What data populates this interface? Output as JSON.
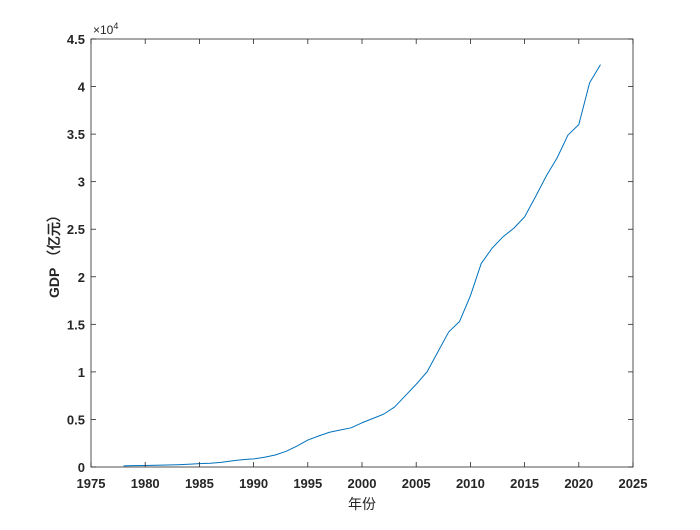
{
  "chart_data": {
    "type": "line",
    "title": "",
    "xlabel": "年份",
    "ylabel": "GDP （亿元）",
    "y_exponent_label": "×10^4",
    "exponent_base": "×10",
    "exponent_power": "4",
    "xlim": [
      1975,
      2025
    ],
    "ylim": [
      0,
      4.5
    ],
    "xticks": [
      "1975",
      "1980",
      "1985",
      "1990",
      "1995",
      "2000",
      "2005",
      "2010",
      "2015",
      "2020",
      "2025"
    ],
    "yticks": [
      "0",
      "0.5",
      "1",
      "1.5",
      "2",
      "2.5",
      "3",
      "3.5",
      "4",
      "4.5"
    ],
    "grid": false,
    "legend": "none",
    "line_color": "#0072BD",
    "series": [
      {
        "x": [
          1978,
          1979,
          1980,
          1981,
          1982,
          1983,
          1984,
          1985,
          1986,
          1987,
          1988,
          1989,
          1990,
          1991,
          1992,
          1993,
          1994,
          1995,
          1996,
          1997,
          1998,
          1999,
          2000,
          2001,
          2002,
          2003,
          2004,
          2005,
          2006,
          2007,
          2008,
          2009,
          2010,
          2011,
          2012,
          2013,
          2014,
          2015,
          2016,
          2017,
          2018,
          2019,
          2020,
          2021,
          2022
        ],
        "y": [
          0.012,
          0.014,
          0.016,
          0.018,
          0.021,
          0.024,
          0.029,
          0.035,
          0.04,
          0.048,
          0.065,
          0.078,
          0.085,
          0.102,
          0.126,
          0.165,
          0.22,
          0.283,
          0.326,
          0.365,
          0.389,
          0.412,
          0.465,
          0.51,
          0.556,
          0.63,
          0.75,
          0.87,
          1.0,
          1.21,
          1.42,
          1.53,
          1.8,
          2.14,
          2.3,
          2.42,
          2.51,
          2.63,
          2.84,
          3.06,
          3.25,
          3.49,
          3.6,
          4.04,
          4.23
        ]
      }
    ]
  }
}
